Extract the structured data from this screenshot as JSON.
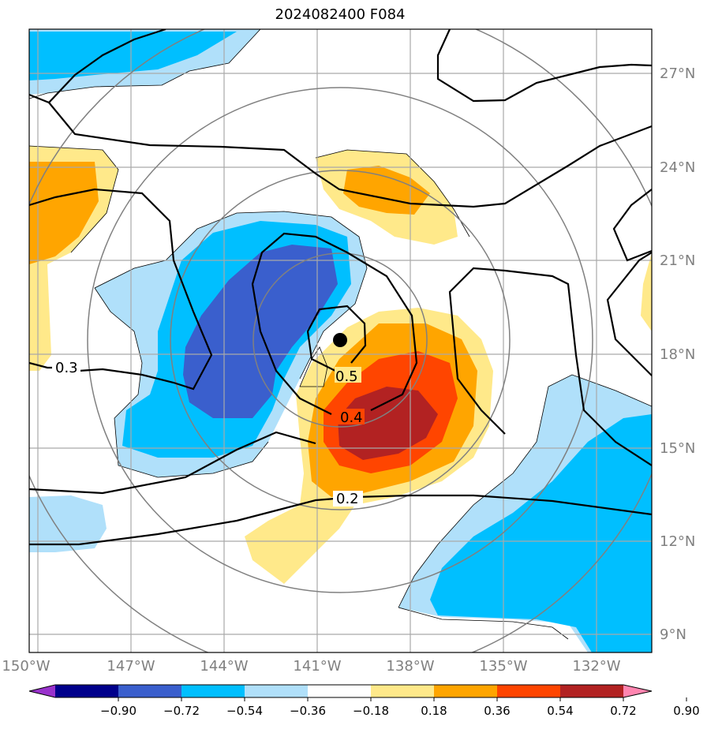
{
  "chart_data": {
    "type": "contour_map",
    "title": "2024082400 F084",
    "lon_range": [
      -150.3,
      -130.4
    ],
    "lat_range": [
      8.5,
      28.3
    ],
    "x_ticks": [
      "150°W",
      "147°W",
      "144°W",
      "141°W",
      "138°W",
      "135°W",
      "132°W"
    ],
    "y_ticks": [
      "9°N",
      "12°N",
      "15°N",
      "18°N",
      "21°N",
      "24°N",
      "27°N"
    ],
    "grid": true,
    "storm_center": {
      "lon": -140.3,
      "lat": 18.4
    },
    "contour_labels": [
      "0.5",
      "0.4",
      "0.3",
      "0.2"
    ],
    "colorbar": {
      "levels": [
        "−0.90",
        "−0.72",
        "−0.54",
        "−0.36",
        "−0.18",
        "0.18",
        "0.36",
        "0.54",
        "0.72",
        "0.90"
      ],
      "colors": [
        "#9932cc",
        "#00008b",
        "#3a5fcd",
        "#00bfff",
        "#b0e0fa",
        "#ffffff",
        "#ffe98a",
        "#ffa500",
        "#ff4500",
        "#b22222",
        "#ff85b0"
      ],
      "extend": "both"
    }
  }
}
